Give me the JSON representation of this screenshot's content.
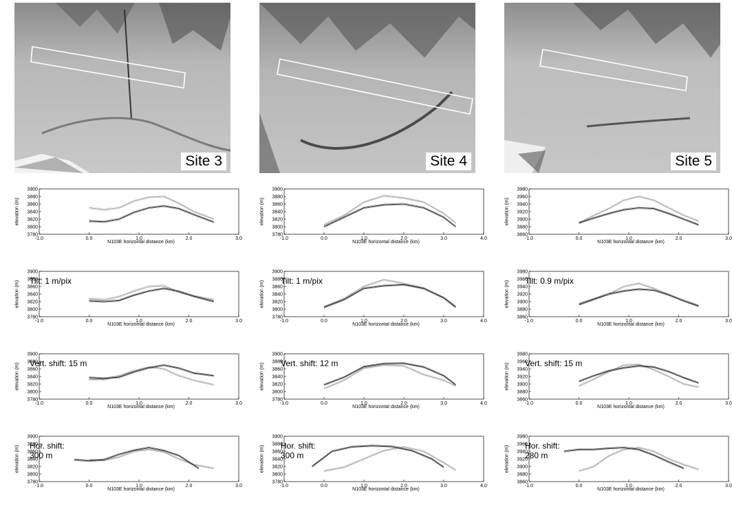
{
  "site_labels": [
    "Site 3",
    "Site 4",
    "Site 5"
  ],
  "xlabel": "N103E horizontal distance (km)",
  "ylabel": "elevation (m)",
  "annotations": {
    "site3": [
      "Tilt: 1 m/pix",
      "Vert. shift: 15 m",
      "Hor. shift:\n300 m"
    ],
    "site4": [
      "Tilt: 1 m/pix",
      "Vert. shift: 12 m",
      "Hor. shift:\n300 m"
    ],
    "site5": [
      "Tilt: 0.9 m/pix",
      "Vert. shift: 15 m",
      "Hor. shift:\n280 m"
    ]
  },
  "chart_data": [
    {
      "type": "line",
      "site": "Site 3",
      "panel": "original",
      "xlim": [
        -1,
        3
      ],
      "ylim": [
        3780,
        3900
      ],
      "xticks": [
        "-1.0",
        "0.0",
        "1.0",
        "2.0",
        "3.0"
      ],
      "yticks": [
        "3780",
        "3800",
        "3820",
        "3840",
        "3860",
        "3880",
        "3900"
      ],
      "series": [
        {
          "x": [
            0,
            0.3,
            0.6,
            0.9,
            1.2,
            1.5,
            1.8,
            2.1,
            2.5
          ],
          "y": [
            3850,
            3845,
            3850,
            3868,
            3878,
            3880,
            3862,
            3840,
            3820
          ]
        },
        {
          "x": [
            0,
            0.3,
            0.6,
            0.9,
            1.2,
            1.5,
            1.8,
            2.1,
            2.5
          ],
          "y": [
            3815,
            3813,
            3820,
            3838,
            3850,
            3855,
            3848,
            3832,
            3812
          ]
        }
      ]
    },
    {
      "type": "line",
      "site": "Site 4",
      "panel": "original",
      "xlim": [
        -1,
        4
      ],
      "ylim": [
        3780,
        3900
      ],
      "xticks": [
        "-1.0",
        "0.0",
        "1.0",
        "2.0",
        "3.0",
        "4.0"
      ],
      "yticks": [
        "3780",
        "3800",
        "3820",
        "3840",
        "3860",
        "3880",
        "3900"
      ],
      "series": [
        {
          "x": [
            0,
            0.5,
            1.0,
            1.5,
            2.0,
            2.5,
            3.0,
            3.3
          ],
          "y": [
            3805,
            3830,
            3865,
            3882,
            3876,
            3865,
            3835,
            3810
          ]
        },
        {
          "x": [
            0,
            0.5,
            1.0,
            1.5,
            2.0,
            2.5,
            3.0,
            3.3
          ],
          "y": [
            3800,
            3825,
            3850,
            3858,
            3860,
            3850,
            3825,
            3800
          ]
        }
      ]
    },
    {
      "type": "line",
      "site": "Site 5",
      "panel": "original",
      "xlim": [
        -1,
        3
      ],
      "ylim": [
        3860,
        3980
      ],
      "xticks": [
        "-1.0",
        "0.0",
        "1.0",
        "2.0",
        "3.0"
      ],
      "yticks": [
        "3860",
        "3880",
        "3900",
        "3920",
        "3940",
        "3960",
        "3980"
      ],
      "series": [
        {
          "x": [
            0,
            0.3,
            0.6,
            0.9,
            1.2,
            1.5,
            1.8,
            2.1,
            2.4
          ],
          "y": [
            3890,
            3910,
            3928,
            3950,
            3960,
            3950,
            3930,
            3910,
            3895
          ]
        },
        {
          "x": [
            0,
            0.3,
            0.6,
            0.9,
            1.2,
            1.5,
            1.8,
            2.1,
            2.4
          ],
          "y": [
            3890,
            3903,
            3915,
            3925,
            3930,
            3928,
            3915,
            3900,
            3885
          ]
        }
      ]
    },
    {
      "type": "line",
      "site": "Site 3",
      "panel": "tilt",
      "xlim": [
        -1,
        3
      ],
      "ylim": [
        3780,
        3900
      ],
      "xticks": [
        "-1.0",
        "0.0",
        "1.0",
        "2.0",
        "3.0"
      ],
      "yticks": [
        "3780",
        "3800",
        "3820",
        "3840",
        "3860",
        "3880",
        "3900"
      ],
      "series": [
        {
          "x": [
            0,
            0.3,
            0.6,
            0.9,
            1.2,
            1.5,
            1.8,
            2.1,
            2.5
          ],
          "y": [
            3828,
            3825,
            3833,
            3848,
            3860,
            3862,
            3845,
            3835,
            3825
          ]
        },
        {
          "x": [
            0,
            0.3,
            0.6,
            0.9,
            1.2,
            1.5,
            1.8,
            2.1,
            2.5
          ],
          "y": [
            3822,
            3820,
            3823,
            3837,
            3848,
            3855,
            3847,
            3834,
            3820
          ]
        }
      ]
    },
    {
      "type": "line",
      "site": "Site 4",
      "panel": "tilt",
      "xlim": [
        -1,
        4
      ],
      "ylim": [
        3780,
        3900
      ],
      "xticks": [
        "-1.0",
        "0.0",
        "1.0",
        "2.0",
        "3.0",
        "4.0"
      ],
      "yticks": [
        "3780",
        "3800",
        "3820",
        "3840",
        "3860",
        "3880",
        "3900"
      ],
      "series": [
        {
          "x": [
            0,
            0.5,
            1.0,
            1.5,
            2.0,
            2.5,
            3.0,
            3.3
          ],
          "y": [
            3806,
            3828,
            3860,
            3878,
            3868,
            3855,
            3830,
            3808
          ]
        },
        {
          "x": [
            0,
            0.5,
            1.0,
            1.5,
            2.0,
            2.5,
            3.0,
            3.3
          ],
          "y": [
            3805,
            3825,
            3855,
            3862,
            3865,
            3855,
            3830,
            3805
          ]
        }
      ]
    },
    {
      "type": "line",
      "site": "Site 5",
      "panel": "tilt",
      "xlim": [
        -1,
        3
      ],
      "ylim": [
        3860,
        3980
      ],
      "xticks": [
        "-1.0",
        "0.0",
        "1.0",
        "2.0",
        "3.0"
      ],
      "yticks": [
        "3860",
        "3880",
        "3900",
        "3920",
        "3940",
        "3960",
        "3980"
      ],
      "series": [
        {
          "x": [
            0,
            0.3,
            0.6,
            0.9,
            1.2,
            1.5,
            1.8,
            2.1,
            2.4
          ],
          "y": [
            3895,
            3908,
            3920,
            3940,
            3948,
            3935,
            3918,
            3902,
            3890
          ]
        },
        {
          "x": [
            0,
            0.3,
            0.6,
            0.9,
            1.2,
            1.5,
            1.8,
            2.1,
            2.4
          ],
          "y": [
            3892,
            3906,
            3920,
            3928,
            3933,
            3930,
            3918,
            3902,
            3888
          ]
        }
      ]
    },
    {
      "type": "line",
      "site": "Site 3",
      "panel": "vertical shift",
      "xlim": [
        -1,
        3
      ],
      "ylim": [
        3780,
        3900
      ],
      "xticks": [
        "-1.0",
        "0.0",
        "1.0",
        "2.0",
        "3.0"
      ],
      "yticks": [
        "3780",
        "3800",
        "3820",
        "3840",
        "3860",
        "3880",
        "3900"
      ],
      "series": [
        {
          "x": [
            0,
            0.3,
            0.6,
            0.9,
            1.2,
            1.5,
            1.8,
            2.1,
            2.5
          ],
          "y": [
            3832,
            3832,
            3842,
            3855,
            3865,
            3860,
            3842,
            3830,
            3818
          ]
        },
        {
          "x": [
            0,
            0.3,
            0.6,
            0.9,
            1.2,
            1.5,
            1.8,
            2.1,
            2.5
          ],
          "y": [
            3837,
            3835,
            3838,
            3852,
            3863,
            3870,
            3862,
            3849,
            3842
          ]
        }
      ]
    },
    {
      "type": "line",
      "site": "Site 4",
      "panel": "vertical shift",
      "xlim": [
        -1,
        4
      ],
      "ylim": [
        3780,
        3900
      ],
      "xticks": [
        "-1.0",
        "0.0",
        "1.0",
        "2.0",
        "3.0",
        "4.0"
      ],
      "yticks": [
        "3780",
        "3800",
        "3820",
        "3840",
        "3860",
        "3880",
        "3900"
      ],
      "series": [
        {
          "x": [
            0,
            0.5,
            1.0,
            1.5,
            2.0,
            2.5,
            3.0,
            3.3
          ],
          "y": [
            3808,
            3830,
            3862,
            3870,
            3868,
            3845,
            3830,
            3815
          ]
        },
        {
          "x": [
            0,
            0.5,
            1.0,
            1.5,
            2.0,
            2.5,
            3.0,
            3.3
          ],
          "y": [
            3818,
            3838,
            3866,
            3874,
            3875,
            3865,
            3842,
            3818
          ]
        }
      ]
    },
    {
      "type": "line",
      "site": "Site 5",
      "panel": "vertical shift",
      "xlim": [
        -1,
        3
      ],
      "ylim": [
        3860,
        3980
      ],
      "xticks": [
        "-1.0",
        "0.0",
        "1.0",
        "2.0",
        "3.0"
      ],
      "yticks": [
        "3860",
        "3880",
        "3900",
        "3920",
        "3940",
        "3960",
        "3980"
      ],
      "series": [
        {
          "x": [
            0,
            0.3,
            0.6,
            0.9,
            1.2,
            1.5,
            1.8,
            2.1,
            2.4
          ],
          "y": [
            3895,
            3913,
            3933,
            3950,
            3952,
            3938,
            3920,
            3900,
            3892
          ]
        },
        {
          "x": [
            0,
            0.3,
            0.6,
            0.9,
            1.2,
            1.5,
            1.8,
            2.1,
            2.4
          ],
          "y": [
            3907,
            3922,
            3935,
            3943,
            3948,
            3945,
            3933,
            3917,
            3903
          ]
        }
      ]
    },
    {
      "type": "line",
      "site": "Site 3",
      "panel": "horizontal shift",
      "xlim": [
        -1,
        3
      ],
      "ylim": [
        3780,
        3900
      ],
      "xticks": [
        "-1.0",
        "0.0",
        "1.0",
        "2.0",
        "3.0"
      ],
      "yticks": [
        "3780",
        "3800",
        "3820",
        "3840",
        "3860",
        "3880",
        "3900"
      ],
      "series": [
        {
          "x": [
            0,
            0.3,
            0.6,
            0.9,
            1.2,
            1.5,
            1.8,
            2.1,
            2.5
          ],
          "y": [
            3838,
            3836,
            3845,
            3860,
            3865,
            3858,
            3840,
            3825,
            3815
          ]
        },
        {
          "x": [
            -0.3,
            0,
            0.3,
            0.6,
            0.9,
            1.2,
            1.5,
            1.8,
            2.2
          ],
          "y": [
            3838,
            3835,
            3838,
            3852,
            3863,
            3870,
            3862,
            3849,
            3815
          ]
        }
      ]
    },
    {
      "type": "line",
      "site": "Site 4",
      "panel": "horizontal shift",
      "xlim": [
        -1,
        4
      ],
      "ylim": [
        3780,
        3900
      ],
      "xticks": [
        "-1.0",
        "0.0",
        "1.0",
        "2.0",
        "3.0",
        "4.0"
      ],
      "yticks": [
        "3780",
        "3800",
        "3820",
        "3840",
        "3860",
        "3880",
        "3900"
      ],
      "series": [
        {
          "x": [
            0,
            0.5,
            1.0,
            1.5,
            2.0,
            2.5,
            3.0,
            3.3
          ],
          "y": [
            3808,
            3818,
            3840,
            3862,
            3872,
            3860,
            3830,
            3810
          ]
        },
        {
          "x": [
            -0.3,
            0.2,
            0.7,
            1.2,
            1.7,
            2.2,
            2.7,
            3.0
          ],
          "y": [
            3820,
            3860,
            3872,
            3875,
            3873,
            3862,
            3840,
            3818
          ]
        }
      ]
    },
    {
      "type": "line",
      "site": "Site 5",
      "panel": "horizontal shift",
      "xlim": [
        -1,
        3
      ],
      "ylim": [
        3860,
        3980
      ],
      "xticks": [
        "-1.0",
        "0.0",
        "1.0",
        "2.0",
        "3.0"
      ],
      "yticks": [
        "3860",
        "3880",
        "3900",
        "3920",
        "3940",
        "3960",
        "3980"
      ],
      "series": [
        {
          "x": [
            0,
            0.3,
            0.6,
            0.9,
            1.2,
            1.5,
            1.8,
            2.1,
            2.4
          ],
          "y": [
            3888,
            3900,
            3928,
            3945,
            3950,
            3940,
            3920,
            3905,
            3892
          ]
        },
        {
          "x": [
            -0.3,
            0,
            0.3,
            0.6,
            0.9,
            1.2,
            1.5,
            1.8,
            2.1
          ],
          "y": [
            3940,
            3945,
            3945,
            3948,
            3950,
            3945,
            3930,
            3912,
            3895
          ]
        }
      ]
    }
  ]
}
